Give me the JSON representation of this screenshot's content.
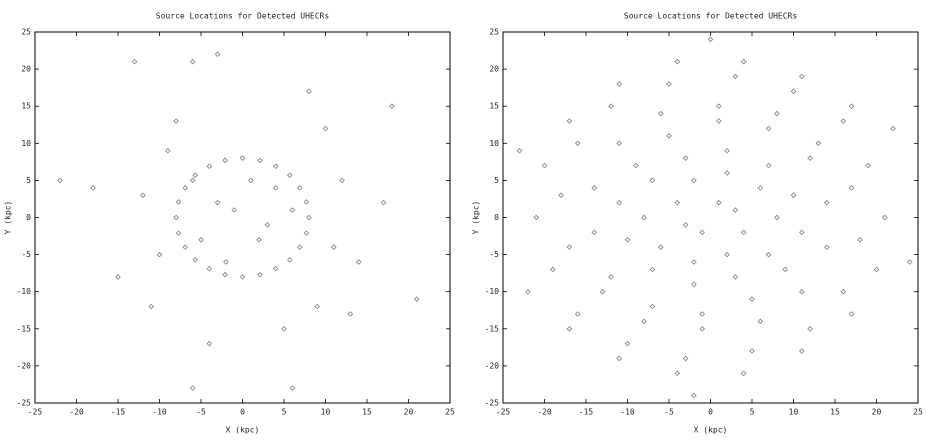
{
  "chart_data": [
    {
      "type": "scatter",
      "title": "Source Locations for Detected UHECRs",
      "xlabel": "X (kpc)",
      "ylabel": "Y (kpc)",
      "color": "#8a8a8a",
      "x": [
        8,
        7.7,
        6.9,
        5.7,
        4,
        2.1,
        0,
        -2.1,
        -4,
        -5.7,
        -6.9,
        -7.7,
        -8,
        -7.7,
        -6.9,
        -5.7,
        -4,
        -2.1,
        0,
        2.1,
        4,
        5.7,
        6.9,
        7.7,
        -3,
        2,
        4,
        -5,
        1,
        -2,
        6,
        -6,
        3,
        -1,
        12,
        -12,
        14,
        -15,
        10,
        -8,
        5,
        -4,
        17,
        -18,
        13,
        -11,
        -6,
        -3,
        8,
        -22,
        21,
        6,
        -6,
        18,
        -13,
        9,
        -9,
        11,
        -10
      ],
      "values": [
        0,
        2.1,
        4,
        5.7,
        6.9,
        7.7,
        8,
        7.7,
        6.9,
        5.7,
        4,
        2.1,
        0,
        -2.1,
        -4,
        -5.7,
        -6.9,
        -7.7,
        -8,
        -7.7,
        -6.9,
        -5.7,
        -4,
        -2.1,
        2,
        -3,
        4,
        -3,
        5,
        -6,
        1,
        5,
        -1,
        1,
        5,
        3,
        -6,
        -8,
        12,
        13,
        -15,
        -17,
        2,
        4,
        -13,
        -12,
        21,
        22,
        17,
        5,
        -11,
        -23,
        -23,
        15,
        21,
        -12,
        9,
        -4,
        -5
      ],
      "xlim": [
        -25,
        25
      ],
      "ylim": [
        -25,
        25
      ],
      "xticks": [
        -25,
        -20,
        -15,
        -10,
        -5,
        0,
        5,
        10,
        15,
        20,
        25
      ],
      "yticks": [
        -25,
        -20,
        -15,
        -10,
        -5,
        0,
        5,
        10,
        15,
        20,
        25
      ]
    },
    {
      "type": "scatter",
      "title": "Source Locations for Detected UHECRs",
      "xlabel": "X (kpc)",
      "ylabel": "Y (kpc)",
      "color": "#8a8a8a",
      "x": [
        1,
        3,
        4,
        2,
        -2,
        -6,
        -8,
        -7,
        -3,
        2,
        7,
        10,
        11,
        9,
        5,
        -1,
        -7,
        -12,
        -14,
        -14,
        -11,
        -6,
        1,
        8,
        13,
        17,
        18,
        16,
        12,
        5,
        -3,
        -10,
        -16,
        -19,
        -21,
        -20,
        -17,
        -11,
        -4,
        4,
        11,
        17,
        -1,
        -3,
        -4,
        -2,
        2,
        6,
        8,
        7,
        3,
        -2,
        -7,
        -10,
        -11,
        -9,
        -5,
        1,
        7,
        12,
        14,
        14,
        11,
        6,
        -1,
        -8,
        -13,
        -17,
        -18,
        -16,
        -12,
        -5,
        3,
        10,
        16,
        19,
        21,
        20,
        17,
        11,
        4,
        -4,
        -11,
        -17,
        24,
        -23,
        0,
        -2,
        22,
        -22
      ],
      "values": [
        2,
        1,
        -2,
        -5,
        -6,
        -4,
        0,
        5,
        8,
        9,
        7,
        3,
        -2,
        -7,
        -11,
        -13,
        -12,
        -8,
        -2,
        4,
        10,
        14,
        15,
        14,
        10,
        4,
        -3,
        -10,
        -15,
        -18,
        -19,
        -17,
        -13,
        -7,
        0,
        7,
        13,
        18,
        21,
        21,
        19,
        15,
        -2,
        -1,
        2,
        5,
        6,
        4,
        0,
        -5,
        -8,
        -9,
        -7,
        -3,
        2,
        7,
        11,
        13,
        12,
        8,
        2,
        -4,
        -10,
        -14,
        -15,
        -14,
        -10,
        -4,
        3,
        10,
        15,
        18,
        19,
        17,
        13,
        7,
        0,
        -7,
        -13,
        -18,
        -21,
        -21,
        -19,
        -15,
        -6,
        9,
        24,
        -24,
        12,
        -10
      ],
      "xlim": [
        -25,
        25
      ],
      "ylim": [
        -25,
        25
      ],
      "xticks": [
        -25,
        -20,
        -15,
        -10,
        -5,
        0,
        5,
        10,
        15,
        20,
        25
      ],
      "yticks": [
        -25,
        -20,
        -15,
        -10,
        -5,
        0,
        5,
        10,
        15,
        20,
        25
      ]
    }
  ]
}
